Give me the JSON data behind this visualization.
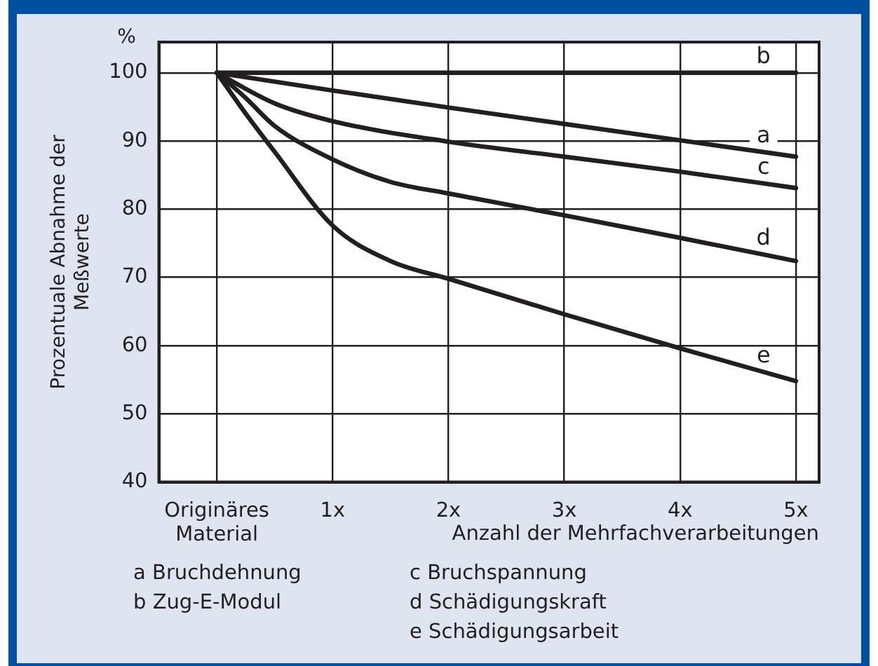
{
  "chart_data": {
    "type": "line",
    "ylabel": "Prozentuale Abnahme der Meßwerte",
    "xlabel": "Anzahl der Mehrfachverarbeitungen",
    "xlim": [
      -0.5,
      5.2
    ],
    "xticks": [
      {
        "value": 0,
        "label": "Originäres Material"
      },
      {
        "value": 1,
        "label": "1x"
      },
      {
        "value": 2,
        "label": "2x"
      },
      {
        "value": 3,
        "label": "3x"
      },
      {
        "value": 4,
        "label": "4x"
      },
      {
        "value": 5,
        "label": "5x"
      }
    ],
    "ylim": [
      40,
      104.5
    ],
    "yticks": [
      40,
      50,
      60,
      70,
      80,
      90,
      100
    ],
    "grid": true,
    "marker": "none",
    "line_style": "solid",
    "series": [
      {
        "name": "b",
        "color": "#231f20",
        "x": [
          0,
          1,
          2,
          3,
          4,
          5
        ],
        "values": [
          100,
          100,
          100,
          100,
          100,
          100
        ]
      },
      {
        "name": "a",
        "color": "#231f20",
        "x": [
          0,
          1,
          2,
          3,
          4,
          5
        ],
        "values": [
          100,
          97.4,
          94.9,
          92.5,
          90.1,
          87.7
        ]
      },
      {
        "name": "c",
        "color": "#231f20",
        "x": [
          0,
          0.5,
          1,
          2,
          3,
          4,
          5
        ],
        "values": [
          100,
          95.5,
          92.9,
          89.9,
          87.7,
          85.5,
          83.1
        ]
      },
      {
        "name": "d",
        "color": "#231f20",
        "x": [
          0,
          0.25,
          0.5,
          1,
          1.5,
          2,
          3,
          4,
          5
        ],
        "values": [
          100,
          96.3,
          92.2,
          87.3,
          84.0,
          82.3,
          79.1,
          75.8,
          72.4
        ]
      },
      {
        "name": "e",
        "color": "#231f20",
        "x": [
          0,
          0.25,
          0.5,
          1,
          1.5,
          2,
          3,
          4,
          5
        ],
        "values": [
          100,
          94.0,
          88.4,
          77.6,
          72.4,
          69.8,
          64.6,
          59.6,
          54.8
        ]
      }
    ],
    "annotations": [
      "%",
      "a Bruchdehnung",
      "b Zug-E-Modul",
      "c Bruchspannung",
      "d Schädigungskraft",
      "e Schädigungsarbeit"
    ]
  }
}
